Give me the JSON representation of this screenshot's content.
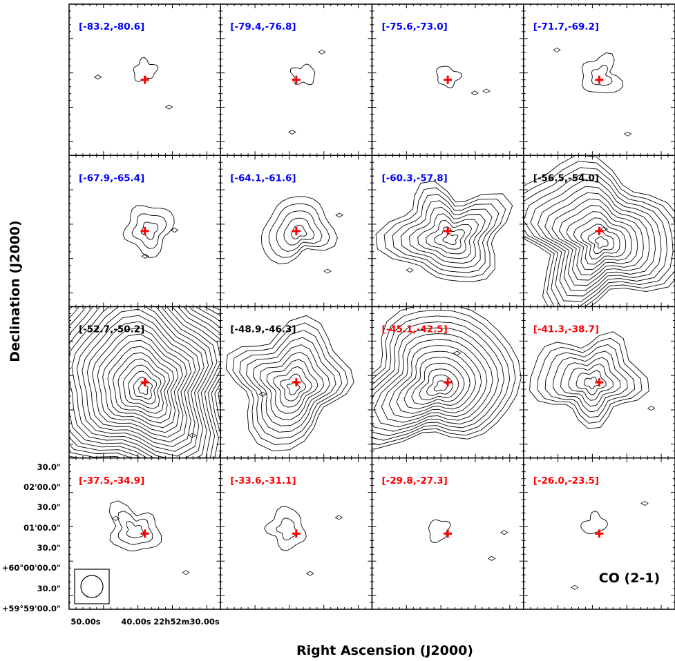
{
  "chart_data": {
    "type": "contour",
    "xlabel": "Right Ascension (J2000)",
    "ylabel": "Declination (J2000)",
    "line_label": "CO (2-1)",
    "x_tick_labels": [
      "50.00s",
      "40.00s",
      "22h52m30.00s"
    ],
    "y_tick_labels": [
      "30.0\"",
      "02'00.0\"",
      "30.0\"",
      "01'00.0\"",
      "30.0\"",
      "+60°00'00.0\"",
      "30.0\"",
      "+59°59'00.0\""
    ],
    "grid": "4x4",
    "colors": {
      "blueshifted": "#0000ff",
      "systemic": "#000000",
      "redshifted": "#ff0000",
      "marker": "#ff0000",
      "contour": "#000000"
    },
    "panels": [
      {
        "label": "[-83.2,-80.6]",
        "color": "#0000ff",
        "peak": 1,
        "cx": 0.5,
        "cy": 0.44
      },
      {
        "label": "[-79.4,-76.8]",
        "color": "#0000ff",
        "peak": 1,
        "cx": 0.55,
        "cy": 0.47
      },
      {
        "label": "[-75.6,-73.0]",
        "color": "#0000ff",
        "peak": 1,
        "cx": 0.5,
        "cy": 0.48
      },
      {
        "label": "[-71.7,-69.2]",
        "color": "#0000ff",
        "peak": 2,
        "cx": 0.51,
        "cy": 0.48
      },
      {
        "label": "[-67.9,-65.4]",
        "color": "#0000ff",
        "peak": 3,
        "cx": 0.53,
        "cy": 0.49
      },
      {
        "label": "[-64.1,-61.6]",
        "color": "#0000ff",
        "peak": 5,
        "cx": 0.51,
        "cy": 0.5
      },
      {
        "label": "[-60.3,-57.8]",
        "color": "#0000ff",
        "peak": 9,
        "cx": 0.51,
        "cy": 0.54
      },
      {
        "label": "[-56.5,-54.0]",
        "color": "#000000",
        "peak": 14,
        "cx": 0.5,
        "cy": 0.55
      },
      {
        "label": "[-52.7,-50.2]",
        "color": "#000000",
        "peak": 24,
        "cx": 0.46,
        "cy": 0.5
      },
      {
        "label": "[-48.9,-46.3]",
        "color": "#000000",
        "peak": 10,
        "cx": 0.47,
        "cy": 0.52
      },
      {
        "label": "[-45.1,-42.5]",
        "color": "#ff0000",
        "peak": 14,
        "cx": 0.44,
        "cy": 0.5
      },
      {
        "label": "[-41.3,-38.7]",
        "color": "#ff0000",
        "peak": 8,
        "cx": 0.44,
        "cy": 0.49
      },
      {
        "label": "[-37.5,-34.9]",
        "color": "#ff0000",
        "peak": 3,
        "cx": 0.43,
        "cy": 0.48
      },
      {
        "label": "[-33.6,-31.1]",
        "color": "#ff0000",
        "peak": 2,
        "cx": 0.44,
        "cy": 0.47
      },
      {
        "label": "[-29.8,-27.3]",
        "color": "#ff0000",
        "peak": 1,
        "cx": 0.44,
        "cy": 0.48
      },
      {
        "label": "[-26.0,-23.5]",
        "color": "#ff0000",
        "peak": 1,
        "cx": 0.47,
        "cy": 0.44
      }
    ]
  }
}
